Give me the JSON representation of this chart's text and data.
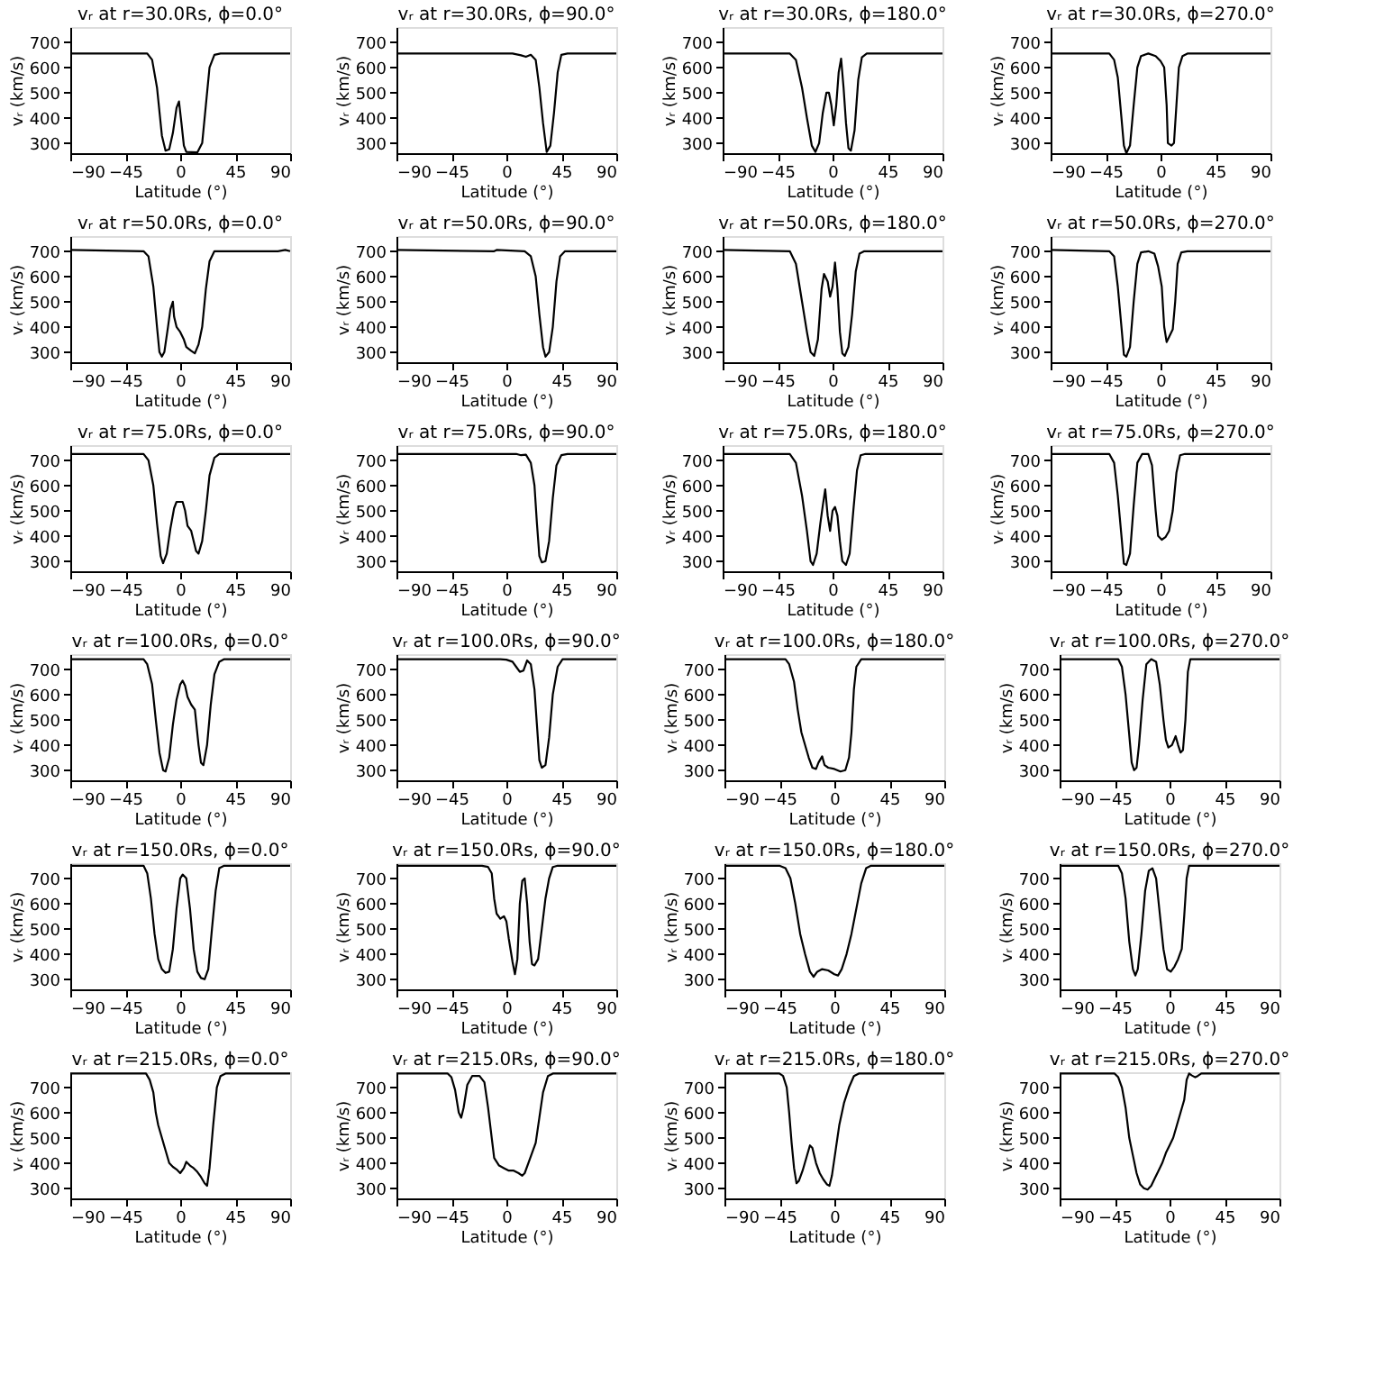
{
  "chart_data": [
    {
      "type": "line",
      "title": "vᵣ at r=30.0Rs, ϕ=0.0°",
      "xlabel": "Latitude (°)",
      "ylabel": "vᵣ (km/s)",
      "xlim": [
        -90,
        90
      ],
      "ylim": [
        260,
        760
      ],
      "xticks": [
        -90,
        -45,
        0,
        45,
        90
      ],
      "yticks": [
        300,
        400,
        500,
        600,
        700
      ],
      "series": [
        {
          "color": "#000000",
          "x": [
            -90,
            -27,
            -23,
            -19,
            -15,
            -12,
            -9,
            -6,
            -3,
            -1,
            1,
            3,
            5,
            14,
            18,
            21,
            24,
            28,
            33,
            90
          ],
          "values": [
            655,
            655,
            630,
            520,
            330,
            270,
            275,
            340,
            440,
            465,
            380,
            290,
            265,
            263,
            300,
            450,
            600,
            650,
            655,
            655
          ]
        }
      ]
    },
    {
      "type": "line",
      "title": "vᵣ at r=30.0Rs, ϕ=90.0°",
      "xlabel": "Latitude (°)",
      "ylabel": "vᵣ (km/s)",
      "xlim": [
        -90,
        90
      ],
      "ylim": [
        260,
        760
      ],
      "xticks": [
        -90,
        -45,
        0,
        45,
        90
      ],
      "yticks": [
        300,
        400,
        500,
        600,
        700
      ],
      "series": [
        {
          "color": "#000000",
          "x": [
            -90,
            5,
            12,
            16,
            20,
            24,
            27,
            30,
            33,
            36,
            39,
            42,
            45,
            50,
            90
          ],
          "values": [
            655,
            655,
            648,
            642,
            650,
            630,
            520,
            380,
            265,
            290,
            420,
            580,
            650,
            655,
            655
          ]
        }
      ]
    },
    {
      "type": "line",
      "title": "vᵣ at r=30.0Rs, ϕ=180.0°",
      "xlabel": "Latitude (°)",
      "ylabel": "vᵣ (km/s)",
      "xlim": [
        -90,
        90
      ],
      "ylim": [
        260,
        760
      ],
      "xticks": [
        -90,
        -45,
        0,
        45,
        90
      ],
      "yticks": [
        300,
        400,
        500,
        600,
        700
      ],
      "series": [
        {
          "color": "#000000",
          "x": [
            -90,
            -35,
            -30,
            -25,
            -21,
            -17,
            -14,
            -11,
            -8,
            -5,
            -3,
            -1,
            1,
            3,
            5,
            7,
            9,
            11,
            13,
            15,
            18,
            21,
            24,
            28,
            90
          ],
          "values": [
            655,
            655,
            630,
            520,
            400,
            290,
            265,
            300,
            420,
            500,
            500,
            450,
            370,
            450,
            580,
            635,
            520,
            380,
            280,
            270,
            350,
            550,
            640,
            655,
            655
          ]
        }
      ]
    },
    {
      "type": "line",
      "title": "vᵣ at r=30.0Rs, ϕ=270.0°",
      "xlabel": "Latitude (°)",
      "ylabel": "vᵣ (km/s)",
      "xlim": [
        -90,
        90
      ],
      "ylim": [
        260,
        760
      ],
      "xticks": [
        -90,
        -45,
        0,
        45,
        90
      ],
      "yticks": [
        300,
        400,
        500,
        600,
        700
      ],
      "series": [
        {
          "color": "#000000",
          "x": [
            -90,
            -42,
            -38,
            -35,
            -32,
            -30,
            -28,
            -25,
            -22,
            -19,
            -16,
            -10,
            -4,
            0,
            3,
            5,
            6,
            9,
            11,
            13,
            15,
            18,
            22,
            90
          ],
          "values": [
            655,
            655,
            630,
            560,
            400,
            290,
            260,
            290,
            450,
            600,
            645,
            655,
            645,
            625,
            600,
            450,
            300,
            290,
            300,
            450,
            600,
            645,
            655,
            655
          ]
        }
      ]
    },
    {
      "type": "line",
      "title": "vᵣ at r=50.0Rs, ϕ=0.0°",
      "xlabel": "Latitude (°)",
      "ylabel": "vᵣ (km/s)",
      "xlim": [
        -90,
        90
      ],
      "ylim": [
        260,
        760
      ],
      "xticks": [
        -90,
        -45,
        0,
        45,
        90
      ],
      "yticks": [
        300,
        400,
        500,
        600,
        700
      ],
      "series": [
        {
          "color": "#000000",
          "x": [
            -90,
            -30,
            -26,
            -22,
            -19,
            -17,
            -15,
            -13,
            -10,
            -8,
            -6,
            -5,
            -3,
            0,
            3,
            5,
            9,
            12,
            15,
            18,
            21,
            24,
            28,
            80,
            86,
            90
          ],
          "values": [
            705,
            700,
            680,
            560,
            400,
            300,
            282,
            300,
            400,
            470,
            500,
            440,
            400,
            380,
            350,
            320,
            305,
            295,
            330,
            400,
            550,
            660,
            700,
            700,
            705,
            700
          ]
        }
      ]
    },
    {
      "type": "line",
      "title": "vᵣ at r=50.0Rs, ϕ=90.0°",
      "xlabel": "Latitude (°)",
      "ylabel": "vᵣ (km/s)",
      "xlim": [
        -90,
        90
      ],
      "ylim": [
        260,
        760
      ],
      "xticks": [
        -90,
        -45,
        0,
        45,
        90
      ],
      "yticks": [
        300,
        400,
        500,
        600,
        700
      ],
      "series": [
        {
          "color": "#000000",
          "x": [
            -90,
            -10,
            -8,
            15,
            20,
            24,
            27,
            30,
            32,
            35,
            38,
            41,
            44,
            48,
            90
          ],
          "values": [
            705,
            700,
            705,
            700,
            680,
            600,
            450,
            320,
            282,
            300,
            400,
            580,
            680,
            700,
            700
          ]
        }
      ]
    },
    {
      "type": "line",
      "title": "vᵣ at r=50.0Rs, ϕ=180.0°",
      "xlabel": "Latitude (°)",
      "ylabel": "vᵣ (km/s)",
      "xlim": [
        -90,
        90
      ],
      "ylim": [
        260,
        760
      ],
      "xticks": [
        -90,
        -45,
        0,
        45,
        90
      ],
      "yticks": [
        300,
        400,
        500,
        600,
        700
      ],
      "series": [
        {
          "color": "#000000",
          "x": [
            -90,
            -35,
            -30,
            -25,
            -21,
            -18,
            -15,
            -12,
            -9,
            -7,
            -4,
            -2,
            0,
            2,
            4,
            6,
            8,
            10,
            13,
            16,
            19,
            22,
            26,
            90
          ],
          "values": [
            705,
            700,
            650,
            500,
            380,
            300,
            285,
            350,
            550,
            610,
            580,
            520,
            560,
            655,
            550,
            380,
            295,
            285,
            320,
            450,
            620,
            690,
            700,
            700
          ]
        }
      ]
    },
    {
      "type": "line",
      "title": "vᵣ at r=50.0Rs, ϕ=270.0°",
      "xlabel": "Latitude (°)",
      "ylabel": "vᵣ (km/s)",
      "xlim": [
        -90,
        90
      ],
      "ylim": [
        260,
        760
      ],
      "xticks": [
        -90,
        -45,
        0,
        45,
        90
      ],
      "yticks": [
        300,
        400,
        500,
        600,
        700
      ],
      "series": [
        {
          "color": "#000000",
          "x": [
            -90,
            -42,
            -38,
            -35,
            -32,
            -30,
            -28,
            -25,
            -22,
            -19,
            -16,
            -10,
            -5,
            -2,
            1,
            3,
            5,
            7,
            10,
            12,
            14,
            17,
            22,
            90
          ],
          "values": [
            705,
            700,
            680,
            560,
            400,
            290,
            282,
            320,
            500,
            650,
            695,
            700,
            690,
            640,
            560,
            400,
            340,
            360,
            390,
            500,
            650,
            695,
            700,
            700
          ]
        }
      ]
    },
    {
      "type": "line",
      "title": "vᵣ at r=75.0Rs, ϕ=0.0°",
      "xlabel": "Latitude (°)",
      "ylabel": "vᵣ (km/s)",
      "xlim": [
        -90,
        90
      ],
      "ylim": [
        260,
        760
      ],
      "xticks": [
        -90,
        -45,
        0,
        45,
        90
      ],
      "yticks": [
        300,
        400,
        500,
        600,
        700
      ],
      "series": [
        {
          "color": "#000000",
          "x": [
            -90,
            -30,
            -26,
            -22,
            -19,
            -16,
            -14,
            -11,
            -8,
            -5,
            -3,
            2,
            4,
            6,
            9,
            11,
            13,
            15,
            18,
            21,
            24,
            28,
            32,
            90
          ],
          "values": [
            725,
            725,
            700,
            600,
            450,
            320,
            292,
            330,
            430,
            510,
            535,
            535,
            500,
            440,
            420,
            380,
            340,
            330,
            380,
            500,
            640,
            710,
            725,
            725
          ]
        }
      ]
    },
    {
      "type": "line",
      "title": "vᵣ at r=75.0Rs, ϕ=90.0°",
      "xlabel": "Latitude (°)",
      "ylabel": "vᵣ (km/s)",
      "xlim": [
        -90,
        90
      ],
      "ylim": [
        260,
        760
      ],
      "xticks": [
        -90,
        -45,
        0,
        45,
        90
      ],
      "yticks": [
        300,
        400,
        500,
        600,
        700
      ],
      "series": [
        {
          "color": "#000000",
          "x": [
            -90,
            8,
            12,
            16,
            20,
            23,
            25,
            27,
            29,
            32,
            35,
            38,
            41,
            45,
            50,
            90
          ],
          "values": [
            725,
            725,
            720,
            722,
            690,
            600,
            450,
            320,
            295,
            300,
            380,
            550,
            680,
            720,
            725,
            725
          ]
        }
      ]
    },
    {
      "type": "line",
      "title": "vᵣ at r=75.0Rs, ϕ=180.0°",
      "xlabel": "Latitude (°)",
      "ylabel": "vᵣ (km/s)",
      "xlim": [
        -90,
        90
      ],
      "ylim": [
        260,
        760
      ],
      "xticks": [
        -90,
        -45,
        0,
        45,
        90
      ],
      "yticks": [
        300,
        400,
        500,
        600,
        700
      ],
      "series": [
        {
          "color": "#000000",
          "x": [
            -90,
            -35,
            -30,
            -25,
            -21,
            -18,
            -16,
            -13,
            -10,
            -8,
            -6,
            -4,
            -2,
            0,
            2,
            4,
            6,
            8,
            11,
            14,
            17,
            20,
            23,
            27,
            90
          ],
          "values": [
            725,
            725,
            690,
            560,
            420,
            300,
            285,
            330,
            450,
            520,
            585,
            480,
            420,
            500,
            515,
            480,
            380,
            300,
            285,
            330,
            500,
            660,
            720,
            725,
            725
          ]
        }
      ]
    },
    {
      "type": "line",
      "title": "vᵣ at r=75.0Rs, ϕ=270.0°",
      "xlabel": "Latitude (°)",
      "ylabel": "vᵣ (km/s)",
      "xlim": [
        -90,
        90
      ],
      "ylim": [
        260,
        760
      ],
      "xticks": [
        -90,
        -45,
        0,
        45,
        90
      ],
      "yticks": [
        300,
        400,
        500,
        600,
        700
      ],
      "series": [
        {
          "color": "#000000",
          "x": [
            -90,
            -42,
            -38,
            -35,
            -32,
            -30,
            -28,
            -25,
            -22,
            -19,
            -15,
            -10,
            -7,
            -4,
            -2,
            1,
            4,
            7,
            10,
            13,
            16,
            20,
            90
          ],
          "values": [
            725,
            725,
            690,
            560,
            400,
            290,
            285,
            330,
            520,
            690,
            725,
            725,
            680,
            500,
            400,
            385,
            395,
            420,
            500,
            650,
            720,
            725,
            725
          ]
        }
      ]
    },
    {
      "type": "line",
      "title": "vᵣ at r=100.0Rs, ϕ=0.0°",
      "xlabel": "Latitude (°)",
      "ylabel": "vᵣ (km/s)",
      "xlim": [
        -90,
        90
      ],
      "ylim": [
        260,
        760
      ],
      "xticks": [
        -90,
        -45,
        0,
        45,
        90
      ],
      "yticks": [
        300,
        400,
        500,
        600,
        700
      ],
      "series": [
        {
          "color": "#000000",
          "x": [
            -90,
            -30,
            -27,
            -23,
            -20,
            -17,
            -14,
            -12,
            -9,
            -6,
            -3,
            0,
            2,
            4,
            6,
            9,
            12,
            15,
            17,
            19,
            22,
            25,
            28,
            32,
            36,
            90
          ],
          "values": [
            740,
            740,
            720,
            640,
            500,
            370,
            300,
            295,
            350,
            480,
            580,
            640,
            655,
            635,
            590,
            560,
            540,
            400,
            330,
            320,
            400,
            560,
            680,
            730,
            740,
            740
          ]
        }
      ]
    },
    {
      "type": "line",
      "title": "vᵣ at r=100.0Rs, ϕ=90.0°",
      "xlabel": "Latitude (°)",
      "ylabel": "vᵣ (km/s)",
      "xlim": [
        -90,
        90
      ],
      "ylim": [
        260,
        760
      ],
      "xticks": [
        -90,
        -45,
        0,
        45,
        90
      ],
      "yticks": [
        300,
        400,
        500,
        600,
        700
      ],
      "series": [
        {
          "color": "#000000",
          "x": [
            -90,
            -5,
            0,
            5,
            8,
            11,
            14,
            17,
            20,
            23,
            25,
            27,
            29,
            32,
            35,
            38,
            42,
            46,
            90
          ],
          "values": [
            740,
            740,
            738,
            730,
            710,
            690,
            695,
            735,
            720,
            620,
            480,
            340,
            310,
            320,
            430,
            600,
            710,
            740,
            740
          ]
        }
      ]
    },
    {
      "type": "line",
      "title": "vᵣ at r=100.0Rs, ϕ=180.0°",
      "xlabel": "Latitude (°)",
      "ylabel": "vᵣ (km/s)",
      "xlim": [
        -90,
        90
      ],
      "ylim": [
        260,
        760
      ],
      "xticks": [
        -90,
        -45,
        0,
        45,
        90
      ],
      "yticks": [
        300,
        400,
        500,
        600,
        700
      ],
      "series": [
        {
          "color": "#000000",
          "x": [
            -90,
            -40,
            -37,
            -33,
            -30,
            -27,
            -24,
            -21,
            -18,
            -15,
            -13,
            -10,
            -8,
            -5,
            0,
            5,
            9,
            12,
            14,
            16,
            18,
            22,
            90
          ],
          "values": [
            740,
            740,
            720,
            650,
            540,
            450,
            400,
            350,
            310,
            305,
            330,
            355,
            320,
            310,
            305,
            295,
            300,
            350,
            450,
            620,
            710,
            740,
            740
          ]
        }
      ]
    },
    {
      "type": "line",
      "title": "vᵣ at r=100.0Rs, ϕ=270.0°",
      "xlabel": "Latitude (°)",
      "ylabel": "vᵣ (km/s)",
      "xlim": [
        -90,
        90
      ],
      "ylim": [
        260,
        760
      ],
      "xticks": [
        -90,
        -45,
        0,
        45,
        90
      ],
      "yticks": [
        300,
        400,
        500,
        600,
        700
      ],
      "series": [
        {
          "color": "#000000",
          "x": [
            -90,
            -42,
            -39,
            -36,
            -33,
            -31,
            -29,
            -27,
            -25,
            -22,
            -19,
            -15,
            -11,
            -8,
            -5,
            -3,
            -1,
            2,
            5,
            7,
            9,
            11,
            13,
            15,
            17,
            90
          ],
          "values": [
            740,
            740,
            710,
            600,
            440,
            330,
            300,
            310,
            400,
            580,
            720,
            740,
            730,
            640,
            500,
            420,
            390,
            400,
            435,
            400,
            370,
            380,
            500,
            690,
            740,
            740
          ]
        }
      ]
    },
    {
      "type": "line",
      "title": "vᵣ at r=150.0Rs, ϕ=0.0°",
      "xlabel": "Latitude (°)",
      "ylabel": "vᵣ (km/s)",
      "xlim": [
        -90,
        90
      ],
      "ylim": [
        260,
        760
      ],
      "xticks": [
        -90,
        -45,
        0,
        45,
        90
      ],
      "yticks": [
        300,
        400,
        500,
        600,
        700
      ],
      "series": [
        {
          "color": "#000000",
          "x": [
            -90,
            -30,
            -27,
            -24,
            -21,
            -18,
            -15,
            -12,
            -9,
            -6,
            -3,
            0,
            2,
            5,
            8,
            11,
            14,
            17,
            20,
            23,
            26,
            29,
            32,
            36,
            90
          ],
          "values": [
            750,
            750,
            720,
            620,
            480,
            380,
            340,
            325,
            330,
            420,
            580,
            700,
            715,
            700,
            580,
            420,
            330,
            305,
            300,
            340,
            500,
            650,
            740,
            750,
            750
          ]
        }
      ]
    },
    {
      "type": "line",
      "title": "vᵣ at r=150.0Rs, ϕ=90.0°",
      "xlabel": "Latitude (°)",
      "ylabel": "vᵣ (km/s)",
      "xlim": [
        -90,
        90
      ],
      "ylim": [
        260,
        760
      ],
      "xticks": [
        -90,
        -45,
        0,
        45,
        90
      ],
      "yticks": [
        300,
        400,
        500,
        600,
        700
      ],
      "series": [
        {
          "color": "#000000",
          "x": [
            -90,
            -20,
            -15,
            -12,
            -10,
            -8,
            -5,
            -2,
            0,
            2,
            5,
            7,
            9,
            11,
            13,
            15,
            17,
            19,
            21,
            23,
            26,
            29,
            32,
            35,
            38,
            42,
            90
          ],
          "values": [
            750,
            750,
            745,
            720,
            620,
            560,
            540,
            550,
            530,
            460,
            370,
            320,
            380,
            600,
            690,
            700,
            600,
            450,
            360,
            355,
            380,
            500,
            620,
            700,
            745,
            750,
            750
          ]
        }
      ]
    },
    {
      "type": "line",
      "title": "vᵣ at r=150.0Rs, ϕ=180.0°",
      "xlabel": "Latitude (°)",
      "ylabel": "vᵣ (km/s)",
      "xlim": [
        -90,
        90
      ],
      "ylim": [
        260,
        760
      ],
      "xticks": [
        -90,
        -45,
        0,
        45,
        90
      ],
      "yticks": [
        300,
        400,
        500,
        600,
        700
      ],
      "series": [
        {
          "color": "#000000",
          "x": [
            -90,
            -45,
            -40,
            -36,
            -32,
            -28,
            -24,
            -20,
            -17,
            -14,
            -10,
            -5,
            0,
            3,
            6,
            10,
            14,
            18,
            22,
            26,
            30,
            90
          ],
          "values": [
            750,
            750,
            740,
            700,
            600,
            480,
            400,
            330,
            310,
            330,
            340,
            335,
            320,
            315,
            340,
            400,
            480,
            580,
            680,
            740,
            750,
            750
          ]
        }
      ]
    },
    {
      "type": "line",
      "title": "vᵣ at r=150.0Rs, ϕ=270.0°",
      "xlabel": "Latitude (°)",
      "ylabel": "vᵣ (km/s)",
      "xlim": [
        -90,
        90
      ],
      "ylim": [
        260,
        760
      ],
      "xticks": [
        -90,
        -45,
        0,
        45,
        90
      ],
      "yticks": [
        300,
        400,
        500,
        600,
        700
      ],
      "series": [
        {
          "color": "#000000",
          "x": [
            -90,
            -42,
            -39,
            -36,
            -33,
            -30,
            -28,
            -26,
            -23,
            -20,
            -17,
            -14,
            -11,
            -8,
            -5,
            -2,
            1,
            4,
            7,
            10,
            12,
            14,
            16,
            90
          ],
          "values": [
            750,
            750,
            720,
            620,
            450,
            340,
            315,
            340,
            480,
            650,
            730,
            740,
            700,
            560,
            420,
            340,
            330,
            350,
            380,
            420,
            550,
            700,
            750,
            750
          ]
        }
      ]
    },
    {
      "type": "line",
      "title": "vᵣ at r=215.0Rs, ϕ=0.0°",
      "xlabel": "Latitude (°)",
      "ylabel": "vᵣ (km/s)",
      "xlim": [
        -90,
        90
      ],
      "ylim": [
        260,
        760
      ],
      "xticks": [
        -90,
        -45,
        0,
        45,
        90
      ],
      "yticks": [
        300,
        400,
        500,
        600,
        700
      ],
      "series": [
        {
          "color": "#000000",
          "x": [
            -90,
            -28,
            -25,
            -22,
            -20,
            -18,
            -15,
            -12,
            -9,
            -6,
            -3,
            0,
            3,
            5,
            8,
            11,
            14,
            17,
            20,
            22,
            24,
            27,
            30,
            33,
            37,
            90
          ],
          "values": [
            755,
            755,
            730,
            680,
            600,
            550,
            500,
            450,
            400,
            385,
            375,
            360,
            380,
            405,
            390,
            380,
            365,
            345,
            320,
            310,
            380,
            550,
            700,
            745,
            755,
            755
          ]
        }
      ]
    },
    {
      "type": "line",
      "title": "vᵣ at r=215.0Rs, ϕ=90.0°",
      "xlabel": "Latitude (°)",
      "ylabel": "vᵣ (km/s)",
      "xlim": [
        -90,
        90
      ],
      "ylim": [
        260,
        760
      ],
      "xticks": [
        -90,
        -45,
        0,
        45,
        90
      ],
      "yticks": [
        300,
        400,
        500,
        600,
        700
      ],
      "series": [
        {
          "color": "#000000",
          "x": [
            -90,
            -48,
            -45,
            -42,
            -39,
            -37,
            -35,
            -32,
            -28,
            -22,
            -18,
            -15,
            -12,
            -10,
            -6,
            -2,
            2,
            6,
            10,
            13,
            15,
            18,
            21,
            24,
            27,
            30,
            34,
            38,
            90
          ],
          "values": [
            755,
            755,
            740,
            690,
            600,
            580,
            620,
            710,
            745,
            745,
            720,
            620,
            500,
            420,
            390,
            380,
            370,
            370,
            360,
            350,
            360,
            400,
            440,
            480,
            580,
            680,
            745,
            755,
            755
          ]
        }
      ]
    },
    {
      "type": "line",
      "title": "vᵣ at r=215.0Rs, ϕ=180.0°",
      "xlabel": "Latitude (°)",
      "ylabel": "vᵣ (km/s)",
      "xlim": [
        -90,
        90
      ],
      "ylim": [
        260,
        760
      ],
      "xticks": [
        -90,
        -45,
        0,
        45,
        90
      ],
      "yticks": [
        300,
        400,
        500,
        600,
        700
      ],
      "series": [
        {
          "color": "#000000",
          "x": [
            -90,
            -45,
            -42,
            -39,
            -37,
            -35,
            -33,
            -31,
            -29,
            -26,
            -23,
            -20,
            -18,
            -15,
            -12,
            -9,
            -6,
            -4,
            -2,
            1,
            4,
            8,
            12,
            16,
            20,
            90
          ],
          "values": [
            755,
            755,
            745,
            700,
            600,
            480,
            380,
            320,
            330,
            370,
            420,
            470,
            460,
            400,
            360,
            335,
            315,
            310,
            350,
            450,
            550,
            640,
            700,
            745,
            755,
            755
          ]
        }
      ]
    },
    {
      "type": "line",
      "title": "vᵣ at r=215.0Rs, ϕ=270.0°",
      "xlabel": "Latitude (°)",
      "ylabel": "vᵣ (km/s)",
      "xlim": [
        -90,
        90
      ],
      "ylim": [
        260,
        760
      ],
      "xticks": [
        -90,
        -45,
        0,
        45,
        90
      ],
      "yticks": [
        300,
        400,
        500,
        600,
        700
      ],
      "series": [
        {
          "color": "#000000",
          "x": [
            -90,
            -45,
            -42,
            -39,
            -36,
            -33,
            -30,
            -27,
            -24,
            -21,
            -18,
            -15,
            -12,
            -9,
            -6,
            -3,
            0,
            3,
            6,
            9,
            12,
            14,
            16,
            18,
            21,
            23,
            26,
            90
          ],
          "values": [
            755,
            755,
            740,
            700,
            620,
            500,
            430,
            360,
            315,
            300,
            295,
            310,
            340,
            370,
            400,
            440,
            470,
            500,
            550,
            600,
            650,
            730,
            755,
            748,
            740,
            745,
            755,
            755
          ]
        }
      ]
    }
  ]
}
